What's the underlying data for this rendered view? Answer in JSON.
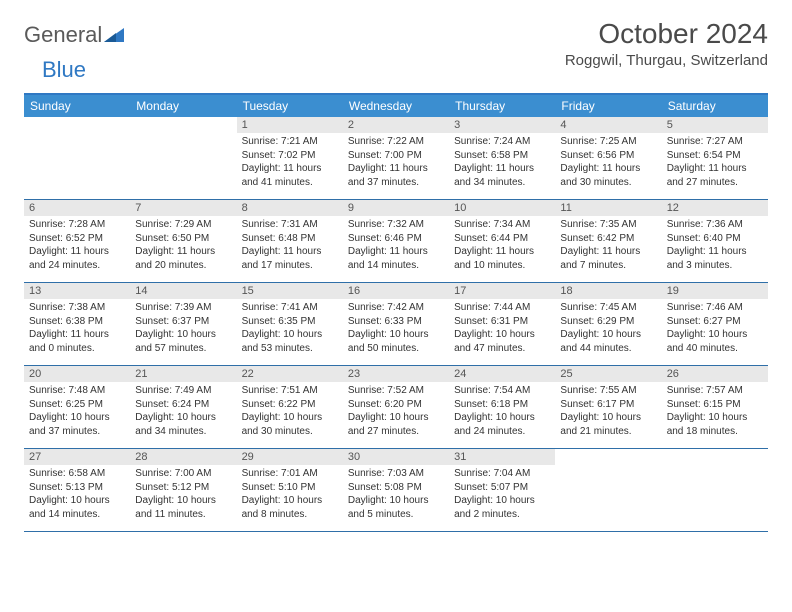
{
  "logo": {
    "text_general": "General",
    "text_blue": "Blue",
    "triangle_color": "#2f78c3"
  },
  "title": "October 2024",
  "location": "Roggwil, Thurgau, Switzerland",
  "colors": {
    "header_bar": "#3b8ed0",
    "header_text": "#ffffff",
    "rule": "#2f6fa8",
    "daynum_bg": "#e8e8e8",
    "daynum_text": "#555555",
    "body_text": "#333333",
    "title_text": "#4a4a4a"
  },
  "weekdays": [
    "Sunday",
    "Monday",
    "Tuesday",
    "Wednesday",
    "Thursday",
    "Friday",
    "Saturday"
  ],
  "weeks": [
    [
      {
        "empty": true
      },
      {
        "empty": true
      },
      {
        "n": "1",
        "sunrise": "Sunrise: 7:21 AM",
        "sunset": "Sunset: 7:02 PM",
        "daylight": "Daylight: 11 hours and 41 minutes."
      },
      {
        "n": "2",
        "sunrise": "Sunrise: 7:22 AM",
        "sunset": "Sunset: 7:00 PM",
        "daylight": "Daylight: 11 hours and 37 minutes."
      },
      {
        "n": "3",
        "sunrise": "Sunrise: 7:24 AM",
        "sunset": "Sunset: 6:58 PM",
        "daylight": "Daylight: 11 hours and 34 minutes."
      },
      {
        "n": "4",
        "sunrise": "Sunrise: 7:25 AM",
        "sunset": "Sunset: 6:56 PM",
        "daylight": "Daylight: 11 hours and 30 minutes."
      },
      {
        "n": "5",
        "sunrise": "Sunrise: 7:27 AM",
        "sunset": "Sunset: 6:54 PM",
        "daylight": "Daylight: 11 hours and 27 minutes."
      }
    ],
    [
      {
        "n": "6",
        "sunrise": "Sunrise: 7:28 AM",
        "sunset": "Sunset: 6:52 PM",
        "daylight": "Daylight: 11 hours and 24 minutes."
      },
      {
        "n": "7",
        "sunrise": "Sunrise: 7:29 AM",
        "sunset": "Sunset: 6:50 PM",
        "daylight": "Daylight: 11 hours and 20 minutes."
      },
      {
        "n": "8",
        "sunrise": "Sunrise: 7:31 AM",
        "sunset": "Sunset: 6:48 PM",
        "daylight": "Daylight: 11 hours and 17 minutes."
      },
      {
        "n": "9",
        "sunrise": "Sunrise: 7:32 AM",
        "sunset": "Sunset: 6:46 PM",
        "daylight": "Daylight: 11 hours and 14 minutes."
      },
      {
        "n": "10",
        "sunrise": "Sunrise: 7:34 AM",
        "sunset": "Sunset: 6:44 PM",
        "daylight": "Daylight: 11 hours and 10 minutes."
      },
      {
        "n": "11",
        "sunrise": "Sunrise: 7:35 AM",
        "sunset": "Sunset: 6:42 PM",
        "daylight": "Daylight: 11 hours and 7 minutes."
      },
      {
        "n": "12",
        "sunrise": "Sunrise: 7:36 AM",
        "sunset": "Sunset: 6:40 PM",
        "daylight": "Daylight: 11 hours and 3 minutes."
      }
    ],
    [
      {
        "n": "13",
        "sunrise": "Sunrise: 7:38 AM",
        "sunset": "Sunset: 6:38 PM",
        "daylight": "Daylight: 11 hours and 0 minutes."
      },
      {
        "n": "14",
        "sunrise": "Sunrise: 7:39 AM",
        "sunset": "Sunset: 6:37 PM",
        "daylight": "Daylight: 10 hours and 57 minutes."
      },
      {
        "n": "15",
        "sunrise": "Sunrise: 7:41 AM",
        "sunset": "Sunset: 6:35 PM",
        "daylight": "Daylight: 10 hours and 53 minutes."
      },
      {
        "n": "16",
        "sunrise": "Sunrise: 7:42 AM",
        "sunset": "Sunset: 6:33 PM",
        "daylight": "Daylight: 10 hours and 50 minutes."
      },
      {
        "n": "17",
        "sunrise": "Sunrise: 7:44 AM",
        "sunset": "Sunset: 6:31 PM",
        "daylight": "Daylight: 10 hours and 47 minutes."
      },
      {
        "n": "18",
        "sunrise": "Sunrise: 7:45 AM",
        "sunset": "Sunset: 6:29 PM",
        "daylight": "Daylight: 10 hours and 44 minutes."
      },
      {
        "n": "19",
        "sunrise": "Sunrise: 7:46 AM",
        "sunset": "Sunset: 6:27 PM",
        "daylight": "Daylight: 10 hours and 40 minutes."
      }
    ],
    [
      {
        "n": "20",
        "sunrise": "Sunrise: 7:48 AM",
        "sunset": "Sunset: 6:25 PM",
        "daylight": "Daylight: 10 hours and 37 minutes."
      },
      {
        "n": "21",
        "sunrise": "Sunrise: 7:49 AM",
        "sunset": "Sunset: 6:24 PM",
        "daylight": "Daylight: 10 hours and 34 minutes."
      },
      {
        "n": "22",
        "sunrise": "Sunrise: 7:51 AM",
        "sunset": "Sunset: 6:22 PM",
        "daylight": "Daylight: 10 hours and 30 minutes."
      },
      {
        "n": "23",
        "sunrise": "Sunrise: 7:52 AM",
        "sunset": "Sunset: 6:20 PM",
        "daylight": "Daylight: 10 hours and 27 minutes."
      },
      {
        "n": "24",
        "sunrise": "Sunrise: 7:54 AM",
        "sunset": "Sunset: 6:18 PM",
        "daylight": "Daylight: 10 hours and 24 minutes."
      },
      {
        "n": "25",
        "sunrise": "Sunrise: 7:55 AM",
        "sunset": "Sunset: 6:17 PM",
        "daylight": "Daylight: 10 hours and 21 minutes."
      },
      {
        "n": "26",
        "sunrise": "Sunrise: 7:57 AM",
        "sunset": "Sunset: 6:15 PM",
        "daylight": "Daylight: 10 hours and 18 minutes."
      }
    ],
    [
      {
        "n": "27",
        "sunrise": "Sunrise: 6:58 AM",
        "sunset": "Sunset: 5:13 PM",
        "daylight": "Daylight: 10 hours and 14 minutes."
      },
      {
        "n": "28",
        "sunrise": "Sunrise: 7:00 AM",
        "sunset": "Sunset: 5:12 PM",
        "daylight": "Daylight: 10 hours and 11 minutes."
      },
      {
        "n": "29",
        "sunrise": "Sunrise: 7:01 AM",
        "sunset": "Sunset: 5:10 PM",
        "daylight": "Daylight: 10 hours and 8 minutes."
      },
      {
        "n": "30",
        "sunrise": "Sunrise: 7:03 AM",
        "sunset": "Sunset: 5:08 PM",
        "daylight": "Daylight: 10 hours and 5 minutes."
      },
      {
        "n": "31",
        "sunrise": "Sunrise: 7:04 AM",
        "sunset": "Sunset: 5:07 PM",
        "daylight": "Daylight: 10 hours and 2 minutes."
      },
      {
        "empty": true
      },
      {
        "empty": true
      }
    ]
  ]
}
